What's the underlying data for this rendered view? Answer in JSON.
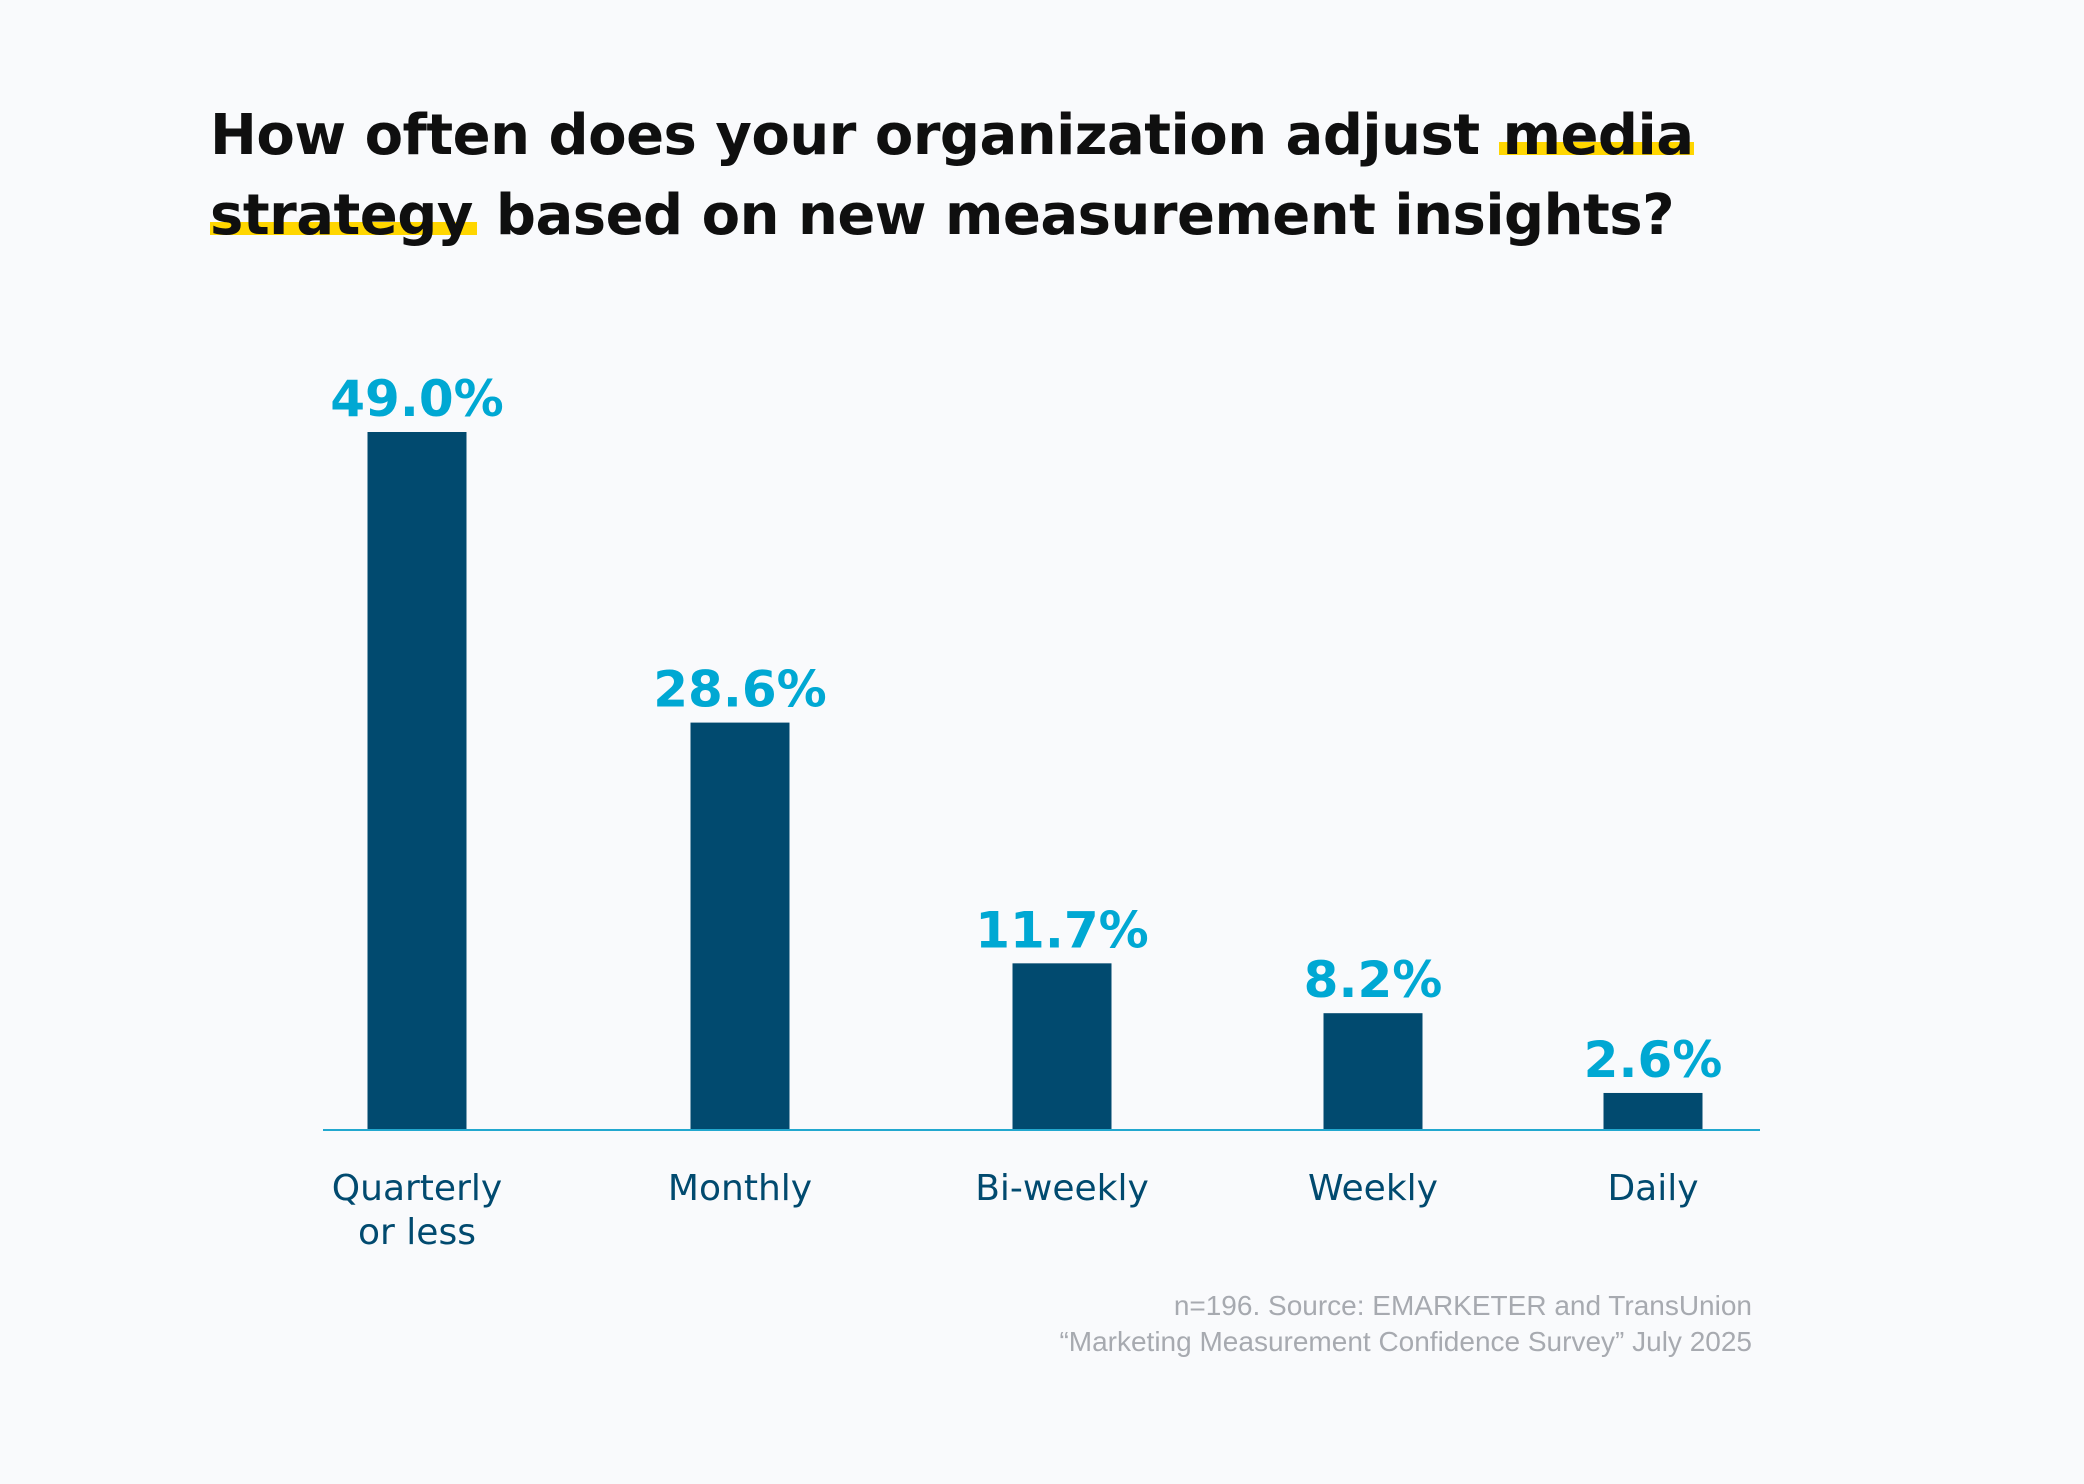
{
  "title": {
    "before": "How often does your organization adjust ",
    "highlight": "media strategy",
    "after": " based on new measurement insights?"
  },
  "source": {
    "line1": "n=196. Source: EMARKETER and TransUnion",
    "line2": "“Marketing Measurement Confidence Survey” July 2025"
  },
  "colors": {
    "bar": "#014a6f",
    "value_label": "#00a8d3",
    "category_label": "#014a6f",
    "axis": "#22a8cf",
    "highlight": "#ffd600"
  },
  "chart_data": {
    "type": "bar",
    "title": "How often does your organization adjust media strategy based on new measurement insights?",
    "categories": [
      "Quarterly or less",
      "Monthly",
      "Bi-weekly",
      "Weekly",
      "Daily"
    ],
    "category_lines": [
      [
        "Quarterly",
        "or less"
      ],
      [
        "Monthly"
      ],
      [
        "Bi-weekly"
      ],
      [
        "Weekly"
      ],
      [
        "Daily"
      ]
    ],
    "values": [
      49.0,
      28.6,
      11.7,
      8.2,
      2.6
    ],
    "value_labels": [
      "49.0%",
      "28.6%",
      "11.7%",
      "8.2%",
      "2.6%"
    ],
    "unit": "%",
    "xlabel": "",
    "ylabel": "",
    "ylim": [
      0,
      49.0
    ],
    "grid": false,
    "legend": "none"
  }
}
